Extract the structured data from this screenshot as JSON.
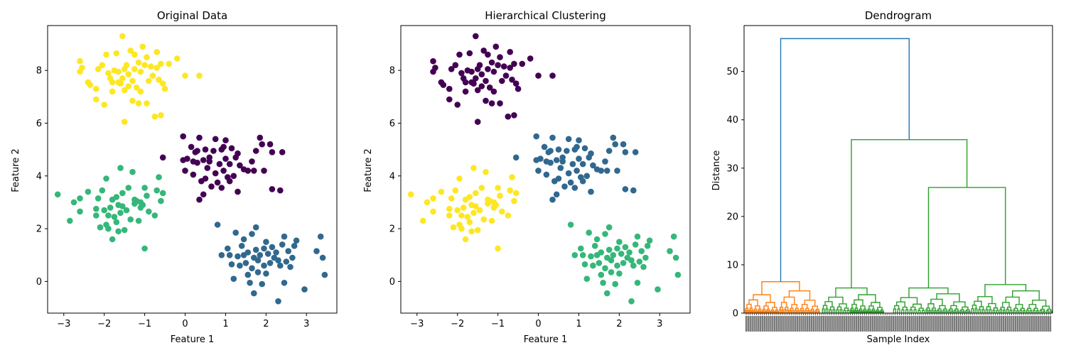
{
  "chart_data": [
    {
      "type": "scatter",
      "title": "Original Data",
      "xlabel": "Feature 1",
      "ylabel": "Feature 2",
      "xlim": [
        -3.4,
        3.75
      ],
      "ylim": [
        -1.2,
        9.7
      ],
      "xticks": [
        "-3",
        "-2",
        "-1",
        "0",
        "1",
        "2",
        "3"
      ],
      "yticks": [
        "0",
        "2",
        "4",
        "6",
        "8"
      ],
      "grid": false,
      "colors": {
        "cluster_a": "#fde725",
        "cluster_b": "#440154",
        "cluster_c": "#35b779",
        "cluster_d": "#31688e"
      },
      "series": [
        {
          "color": "#fde725",
          "points": [
            [
              -2.6,
              8.35
            ],
            [
              -2.55,
              8.1
            ],
            [
              -2.6,
              7.95
            ],
            [
              -2.4,
              7.55
            ],
            [
              -2.35,
              7.45
            ],
            [
              -2.2,
              7.3
            ],
            [
              -2.15,
              8.05
            ],
            [
              -2.2,
              6.9
            ],
            [
              -2.0,
              6.7
            ],
            [
              -1.95,
              8.6
            ],
            [
              -1.85,
              7.7
            ],
            [
              -1.8,
              7.55
            ],
            [
              -1.8,
              7.2
            ],
            [
              -1.75,
              8.0
            ],
            [
              -1.7,
              8.65
            ],
            [
              -1.65,
              7.95
            ],
            [
              -1.6,
              7.5
            ],
            [
              -1.55,
              9.3
            ],
            [
              -1.55,
              7.7
            ],
            [
              -1.5,
              7.25
            ],
            [
              -1.5,
              6.05
            ],
            [
              -1.45,
              8.2
            ],
            [
              -1.4,
              7.85
            ],
            [
              -1.35,
              8.75
            ],
            [
              -1.3,
              7.6
            ],
            [
              -1.3,
              6.85
            ],
            [
              -1.25,
              8.6
            ],
            [
              -1.2,
              7.35
            ],
            [
              -1.15,
              6.75
            ],
            [
              -1.1,
              7.95
            ],
            [
              -1.1,
              7.2
            ],
            [
              -1.05,
              8.9
            ],
            [
              -1.0,
              8.2
            ],
            [
              -0.95,
              6.75
            ],
            [
              -0.95,
              8.5
            ],
            [
              -0.9,
              7.6
            ],
            [
              -0.85,
              8.15
            ],
            [
              -0.8,
              7.8
            ],
            [
              -0.75,
              6.25
            ],
            [
              -0.7,
              8.7
            ],
            [
              -0.65,
              7.65
            ],
            [
              -0.6,
              6.3
            ],
            [
              -0.6,
              8.25
            ],
            [
              -0.55,
              7.5
            ],
            [
              -0.5,
              7.3
            ],
            [
              -0.4,
              8.25
            ],
            [
              -0.2,
              8.45
            ],
            [
              0.0,
              7.8
            ],
            [
              0.35,
              7.8
            ],
            [
              -2.05,
              8.2
            ],
            [
              -1.9,
              7.9
            ],
            [
              -1.65,
              7.55
            ],
            [
              -1.5,
              8.05
            ],
            [
              -1.4,
              7.4
            ],
            [
              -1.25,
              8.05
            ],
            [
              -1.15,
              8.3
            ],
            [
              -0.7,
              8.1
            ]
          ]
        },
        {
          "color": "#440154",
          "points": [
            [
              -0.55,
              4.7
            ],
            [
              -0.05,
              5.5
            ],
            [
              -0.05,
              4.6
            ],
            [
              0.0,
              4.2
            ],
            [
              0.05,
              4.65
            ],
            [
              0.15,
              5.1
            ],
            [
              0.2,
              4.55
            ],
            [
              0.2,
              4.05
            ],
            [
              0.25,
              4.9
            ],
            [
              0.3,
              4.95
            ],
            [
              0.35,
              5.45
            ],
            [
              0.4,
              3.8
            ],
            [
              0.45,
              3.3
            ],
            [
              0.45,
              4.6
            ],
            [
              0.5,
              3.9
            ],
            [
              0.5,
              5.0
            ],
            [
              0.55,
              4.3
            ],
            [
              0.6,
              4.7
            ],
            [
              0.65,
              3.6
            ],
            [
              0.7,
              4.95
            ],
            [
              0.75,
              4.1
            ],
            [
              0.75,
              5.4
            ],
            [
              0.8,
              3.75
            ],
            [
              0.85,
              4.45
            ],
            [
              0.9,
              5.0
            ],
            [
              0.95,
              4.2
            ],
            [
              1.0,
              5.35
            ],
            [
              1.0,
              4.65
            ],
            [
              1.05,
              3.95
            ],
            [
              1.1,
              4.45
            ],
            [
              1.15,
              5.05
            ],
            [
              1.2,
              4.0
            ],
            [
              1.25,
              4.7
            ],
            [
              1.3,
              3.4
            ],
            [
              1.3,
              4.85
            ],
            [
              1.35,
              4.4
            ],
            [
              1.45,
              4.25
            ],
            [
              1.55,
              4.2
            ],
            [
              1.65,
              4.55
            ],
            [
              1.7,
              4.2
            ],
            [
              1.75,
              4.95
            ],
            [
              1.85,
              5.45
            ],
            [
              1.9,
              5.2
            ],
            [
              1.95,
              4.2
            ],
            [
              2.1,
              5.2
            ],
            [
              2.15,
              3.5
            ],
            [
              2.15,
              4.9
            ],
            [
              2.35,
              3.45
            ],
            [
              2.4,
              4.9
            ],
            [
              0.35,
              3.1
            ],
            [
              0.9,
              3.55
            ],
            [
              0.6,
              4.55
            ],
            [
              1.1,
              3.8
            ],
            [
              0.3,
              4.5
            ],
            [
              0.95,
              5.1
            ]
          ]
        },
        {
          "color": "#35b779",
          "points": [
            [
              -3.15,
              3.3
            ],
            [
              -2.85,
              2.3
            ],
            [
              -2.75,
              3.0
            ],
            [
              -2.6,
              2.65
            ],
            [
              -2.6,
              3.15
            ],
            [
              -2.4,
              3.4
            ],
            [
              -2.2,
              2.75
            ],
            [
              -2.2,
              2.5
            ],
            [
              -2.15,
              3.15
            ],
            [
              -2.1,
              2.05
            ],
            [
              -2.05,
              3.45
            ],
            [
              -1.95,
              3.9
            ],
            [
              -1.95,
              2.15
            ],
            [
              -1.9,
              2.5
            ],
            [
              -1.85,
              2.8
            ],
            [
              -1.8,
              3.1
            ],
            [
              -1.8,
              1.6
            ],
            [
              -1.75,
              2.45
            ],
            [
              -1.7,
              3.2
            ],
            [
              -1.65,
              2.9
            ],
            [
              -1.6,
              4.3
            ],
            [
              -1.6,
              2.6
            ],
            [
              -1.55,
              3.35
            ],
            [
              -1.5,
              1.95
            ],
            [
              -1.45,
              2.7
            ],
            [
              -1.4,
              3.55
            ],
            [
              -1.35,
              2.35
            ],
            [
              -1.3,
              4.15
            ],
            [
              -1.25,
              2.95
            ],
            [
              -1.2,
              3.05
            ],
            [
              -1.15,
              2.3
            ],
            [
              -1.1,
              3.0
            ],
            [
              -1.05,
              2.9
            ],
            [
              -1.0,
              3.55
            ],
            [
              -1.0,
              1.25
            ],
            [
              -0.95,
              3.25
            ],
            [
              -0.9,
              2.65
            ],
            [
              -0.75,
              2.5
            ],
            [
              -0.7,
              3.45
            ],
            [
              -0.65,
              3.95
            ],
            [
              -0.6,
              3.05
            ],
            [
              -0.55,
              3.35
            ],
            [
              -1.9,
              2.0
            ],
            [
              -1.7,
              2.25
            ],
            [
              -1.55,
              2.85
            ],
            [
              -1.25,
              3.1
            ],
            [
              -1.1,
              2.8
            ],
            [
              -2.0,
              2.7
            ],
            [
              -1.65,
              1.9
            ]
          ]
        },
        {
          "color": "#31688e",
          "points": [
            [
              0.8,
              2.15
            ],
            [
              0.9,
              1.0
            ],
            [
              1.05,
              1.25
            ],
            [
              1.1,
              1.0
            ],
            [
              1.15,
              0.65
            ],
            [
              1.2,
              0.1
            ],
            [
              1.25,
              1.85
            ],
            [
              1.3,
              0.95
            ],
            [
              1.35,
              0.6
            ],
            [
              1.4,
              1.35
            ],
            [
              1.45,
              1.6
            ],
            [
              1.5,
              0.7
            ],
            [
              1.55,
              0.25
            ],
            [
              1.55,
              1.1
            ],
            [
              1.6,
              -0.05
            ],
            [
              1.65,
              1.8
            ],
            [
              1.65,
              0.5
            ],
            [
              1.7,
              0.9
            ],
            [
              1.7,
              -0.45
            ],
            [
              1.75,
              2.05
            ],
            [
              1.75,
              1.2
            ],
            [
              1.8,
              0.35
            ],
            [
              1.8,
              0.8
            ],
            [
              1.85,
              1.0
            ],
            [
              1.9,
              -0.1
            ],
            [
              1.95,
              0.6
            ],
            [
              2.0,
              1.5
            ],
            [
              2.0,
              0.3
            ],
            [
              2.05,
              1.05
            ],
            [
              2.1,
              0.7
            ],
            [
              2.15,
              1.3
            ],
            [
              2.2,
              0.9
            ],
            [
              2.25,
              1.1
            ],
            [
              2.3,
              -0.75
            ],
            [
              2.35,
              0.6
            ],
            [
              2.4,
              1.4
            ],
            [
              2.45,
              -0.05
            ],
            [
              2.5,
              0.75
            ],
            [
              2.55,
              1.15
            ],
            [
              2.6,
              0.55
            ],
            [
              2.65,
              0.9
            ],
            [
              2.7,
              1.35
            ],
            [
              2.75,
              1.55
            ],
            [
              2.95,
              -0.3
            ],
            [
              3.25,
              1.15
            ],
            [
              3.35,
              1.7
            ],
            [
              3.4,
              0.9
            ],
            [
              3.45,
              0.25
            ],
            [
              1.45,
              1.0
            ],
            [
              1.95,
              1.25
            ],
            [
              2.3,
              0.8
            ],
            [
              2.45,
              1.7
            ]
          ]
        }
      ]
    },
    {
      "type": "scatter",
      "title": "Hierarchical Clustering",
      "xlabel": "Feature 1",
      "ylabel": "Feature 2",
      "xlim": [
        -3.4,
        3.75
      ],
      "ylim": [
        -1.2,
        9.7
      ],
      "xticks": [
        "-3",
        "-2",
        "-1",
        "0",
        "1",
        "2",
        "3"
      ],
      "yticks": [
        "0",
        "2",
        "4",
        "6",
        "8"
      ],
      "grid": false,
      "colors": {
        "cluster_a": "#440154",
        "cluster_b": "#31688e",
        "cluster_c": "#fde725",
        "cluster_d": "#35b779"
      },
      "series": [
        {
          "color": "#440154",
          "same_points_as": 0
        },
        {
          "color": "#31688e",
          "same_points_as": 1
        },
        {
          "color": "#fde725",
          "same_points_as": 2
        },
        {
          "color": "#35b779",
          "same_points_as": 3
        }
      ]
    },
    {
      "type": "dendrogram",
      "title": "Dendrogram",
      "xlabel": "Sample Index",
      "ylabel": "Distance",
      "ylim": [
        0,
        59.5
      ],
      "yticks": [
        "0",
        "10",
        "20",
        "30",
        "40",
        "50"
      ],
      "grid": false,
      "colors": {
        "root": "#1f77b4",
        "cluster_left": "#ff7f0e",
        "cluster_right": "#2ca02c"
      },
      "merges": [
        {
          "name": "root",
          "height": 56.8
        },
        {
          "name": "right_top",
          "height": 35.9
        },
        {
          "name": "right_lower",
          "height": 26.0
        },
        {
          "name": "orange_top",
          "height": 6.5
        },
        {
          "name": "green_a",
          "height": 5.2
        },
        {
          "name": "green_b",
          "height": 5.2
        },
        {
          "name": "green_c",
          "height": 5.9
        }
      ]
    }
  ]
}
